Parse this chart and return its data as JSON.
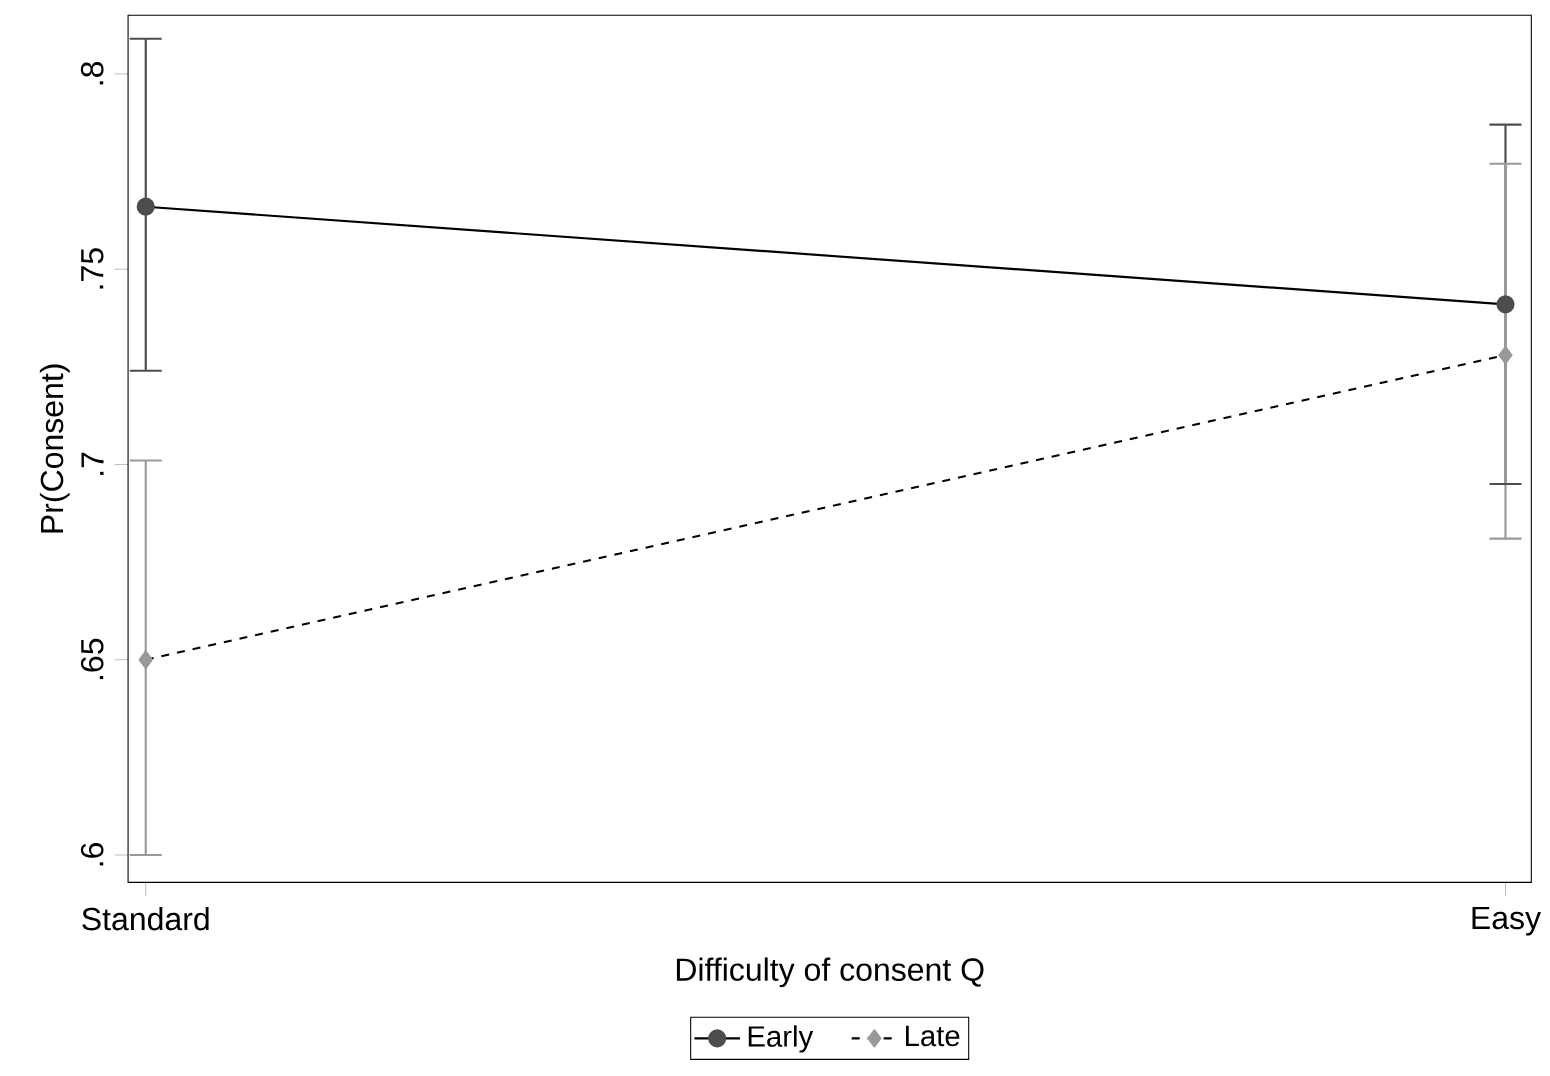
{
  "chart_data": {
    "type": "line",
    "xlabel": "Difficulty of consent Q",
    "ylabel": "Pr(Consent)",
    "categories": [
      "Standard",
      "Easy"
    ],
    "series": [
      {
        "name": "Early",
        "color": "#4d4d4d",
        "values": [
          0.766,
          0.741
        ],
        "errors": [
          [
            0.724,
            0.809
          ],
          [
            0.695,
            0.787
          ]
        ],
        "marker": "circle",
        "line_style": "solid"
      },
      {
        "name": "Late",
        "color": "#999999",
        "values": [
          0.65,
          0.728
        ],
        "errors": [
          [
            0.6,
            0.701
          ],
          [
            0.681,
            0.777
          ]
        ],
        "marker": "diamond",
        "line_style": "dashed"
      }
    ],
    "ylim": [
      0.593,
      0.815
    ],
    "yticks": [
      {
        "value": 0.6,
        "label": ".6"
      },
      {
        "value": 0.65,
        "label": ".65"
      },
      {
        "value": 0.7,
        "label": ".7"
      },
      {
        "value": 0.75,
        "label": ".75"
      },
      {
        "value": 0.8,
        "label": ".8"
      }
    ],
    "grid": false,
    "legend": "bottom"
  }
}
